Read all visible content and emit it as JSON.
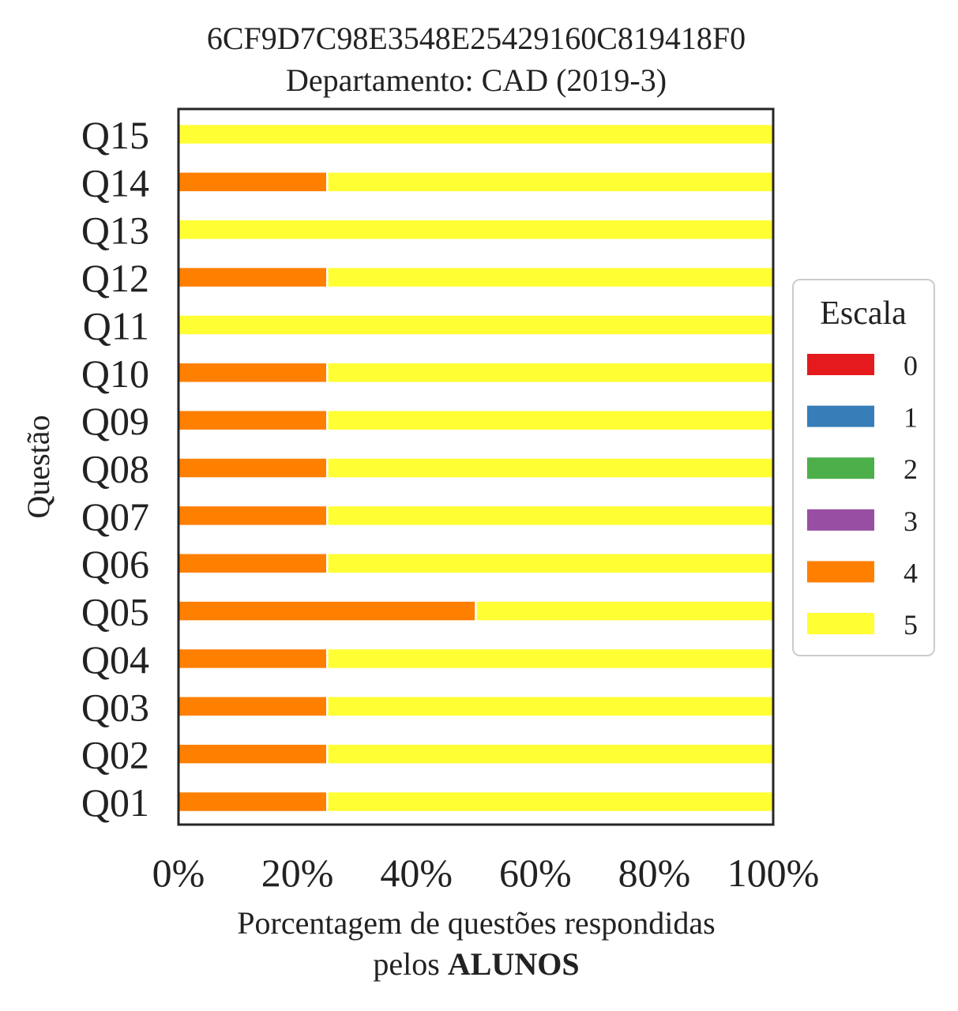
{
  "chart_data": {
    "type": "bar",
    "orientation": "horizontal",
    "stacked": true,
    "title": "6CF9D7C98E3548E25429160C819418F0",
    "subtitle": "Departamento: CAD (2019-3)",
    "ylabel": "Questão",
    "xlabel_line1": "Porcentagem de questões respondidas",
    "xlabel_line2_prefix": "pelos ",
    "xlabel_line2_bold": "ALUNOS",
    "categories": [
      "Q01",
      "Q02",
      "Q03",
      "Q04",
      "Q05",
      "Q06",
      "Q07",
      "Q08",
      "Q09",
      "Q10",
      "Q11",
      "Q12",
      "Q13",
      "Q14",
      "Q15"
    ],
    "xlim": [
      0,
      100
    ],
    "xticks": [
      0,
      20,
      40,
      60,
      80,
      100
    ],
    "xtick_labels": [
      "0%",
      "20%",
      "40%",
      "60%",
      "80%",
      "100%"
    ],
    "legend_title": "Escala",
    "legend_position": "right",
    "grid": false,
    "series": [
      {
        "name": "0",
        "color": "#e41a1c",
        "values": [
          0,
          0,
          0,
          0,
          0,
          0,
          0,
          0,
          0,
          0,
          0,
          0,
          0,
          0,
          0
        ]
      },
      {
        "name": "1",
        "color": "#377eb8",
        "values": [
          0,
          0,
          0,
          0,
          0,
          0,
          0,
          0,
          0,
          0,
          0,
          0,
          0,
          0,
          0
        ]
      },
      {
        "name": "2",
        "color": "#4daf4a",
        "values": [
          0,
          0,
          0,
          0,
          0,
          0,
          0,
          0,
          0,
          0,
          0,
          0,
          0,
          0,
          0
        ]
      },
      {
        "name": "3",
        "color": "#984ea3",
        "values": [
          0,
          0,
          0,
          0,
          0,
          0,
          0,
          0,
          0,
          0,
          0,
          0,
          0,
          0,
          0
        ]
      },
      {
        "name": "4",
        "color": "#ff7f00",
        "values": [
          25,
          25,
          25,
          25,
          50,
          25,
          25,
          25,
          25,
          25,
          0,
          25,
          0,
          25,
          0
        ]
      },
      {
        "name": "5",
        "color": "#ffff33",
        "values": [
          75,
          75,
          75,
          75,
          50,
          75,
          75,
          75,
          75,
          75,
          100,
          75,
          100,
          75,
          100
        ]
      }
    ]
  }
}
